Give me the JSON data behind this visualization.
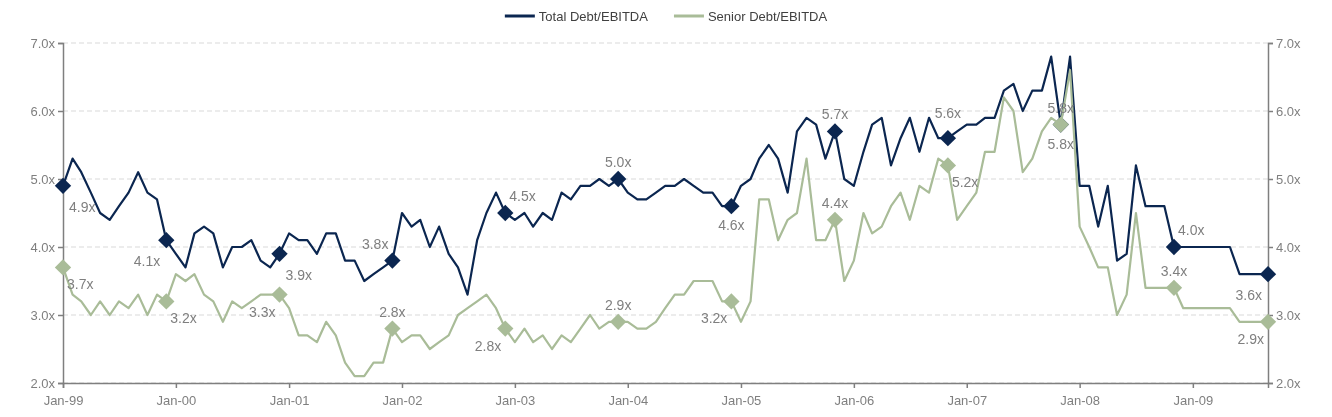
{
  "chart_data": {
    "type": "line",
    "x": [
      "1999-01",
      "1999-02",
      "1999-03",
      "1999-04",
      "1999-05",
      "1999-06",
      "1999-07",
      "1999-08",
      "1999-09",
      "1999-10",
      "1999-11",
      "1999-12",
      "2000-01",
      "2000-02",
      "2000-03",
      "2000-04",
      "2000-05",
      "2000-06",
      "2000-07",
      "2000-08",
      "2000-09",
      "2000-10",
      "2000-11",
      "2000-12",
      "2001-01",
      "2001-02",
      "2001-03",
      "2001-04",
      "2001-05",
      "2001-06",
      "2001-07",
      "2001-08",
      "2001-09",
      "2001-10",
      "2001-11",
      "2001-12",
      "2002-01",
      "2002-02",
      "2002-03",
      "2002-04",
      "2002-05",
      "2002-06",
      "2002-07",
      "2002-08",
      "2002-09",
      "2002-10",
      "2002-11",
      "2002-12",
      "2003-01",
      "2003-02",
      "2003-03",
      "2003-04",
      "2003-05",
      "2003-06",
      "2003-07",
      "2003-08",
      "2003-09",
      "2003-10",
      "2003-11",
      "2003-12",
      "2004-01",
      "2004-02",
      "2004-03",
      "2004-04",
      "2004-05",
      "2004-06",
      "2004-07",
      "2004-08",
      "2004-09",
      "2004-10",
      "2004-11",
      "2004-12",
      "2005-01",
      "2005-02",
      "2005-03",
      "2005-04",
      "2005-05",
      "2005-06",
      "2005-07",
      "2005-08",
      "2005-09",
      "2005-10",
      "2005-11",
      "2005-12",
      "2006-01",
      "2006-02",
      "2006-03",
      "2006-04",
      "2006-05",
      "2006-06",
      "2006-07",
      "2006-08",
      "2006-09",
      "2006-10",
      "2006-11",
      "2006-12",
      "2007-01",
      "2007-02",
      "2007-03",
      "2007-04",
      "2007-05",
      "2007-06",
      "2007-07",
      "2007-08",
      "2007-09",
      "2007-10",
      "2007-11",
      "2007-12",
      "2008-01",
      "2008-02",
      "2008-03",
      "2008-04",
      "2008-05",
      "2008-06",
      "2008-07",
      "2008-08",
      "2008-09",
      "2008-10",
      "2008-11",
      "2008-12",
      "2009-01",
      "2009-02",
      "2009-03",
      "2009-04",
      "2009-05",
      "2009-06",
      "2009-07",
      "2009-08",
      "2009-09"
    ],
    "series": [
      {
        "name": "Total Debt/EBITDA",
        "color": "#0b2650",
        "values": [
          4.9,
          5.3,
          5.1,
          4.8,
          4.5,
          4.4,
          4.6,
          4.8,
          5.1,
          4.8,
          4.7,
          4.1,
          3.9,
          3.7,
          4.2,
          4.3,
          4.2,
          3.7,
          4.0,
          4.0,
          4.1,
          3.8,
          3.7,
          3.9,
          4.2,
          4.1,
          4.1,
          3.9,
          4.2,
          4.2,
          3.8,
          3.8,
          3.5,
          3.6,
          3.7,
          3.8,
          4.5,
          4.3,
          4.4,
          4.0,
          4.3,
          3.9,
          3.7,
          3.3,
          4.1,
          4.5,
          4.8,
          4.5,
          4.4,
          4.5,
          4.3,
          4.5,
          4.4,
          4.8,
          4.7,
          4.9,
          4.9,
          5.0,
          4.9,
          5.0,
          4.8,
          4.7,
          4.7,
          4.8,
          4.9,
          4.9,
          5.0,
          4.9,
          4.8,
          4.8,
          4.6,
          4.6,
          4.9,
          5.0,
          5.3,
          5.5,
          5.3,
          4.8,
          5.7,
          5.9,
          5.8,
          5.3,
          5.7,
          5.0,
          4.9,
          5.4,
          5.8,
          5.9,
          5.2,
          5.6,
          5.9,
          5.4,
          5.9,
          5.6,
          5.6,
          5.7,
          5.8,
          5.8,
          5.9,
          5.9,
          6.3,
          6.4,
          6.0,
          6.3,
          6.3,
          6.8,
          5.8,
          6.8,
          4.9,
          4.9,
          4.3,
          4.9,
          3.8,
          3.9,
          5.2,
          4.6,
          4.6,
          4.6,
          4.0,
          4.0,
          4.0,
          4.0,
          4.0,
          4.0,
          4.0,
          3.6,
          3.6,
          3.6,
          3.6
        ]
      },
      {
        "type": "scatter",
        "marker": "diamond",
        "color": "#0b2650",
        "x": [
          "1999-01",
          "1999-12",
          "2000-12",
          "2001-12",
          "2002-12",
          "2003-12",
          "2004-12",
          "2005-11",
          "2006-11",
          "2007-11",
          "2008-11",
          "2009-09"
        ],
        "values": [
          4.9,
          4.1,
          3.9,
          3.8,
          4.5,
          5.0,
          4.6,
          5.7,
          5.6,
          5.8,
          4.0,
          3.6
        ],
        "value_labels": [
          "4.9x",
          "4.1x",
          "3.9x",
          "3.8x",
          "4.5x",
          "5.0x",
          "4.6x",
          "5.7x",
          "5.6x",
          "5.8x",
          "4.0x",
          "3.6x"
        ]
      },
      {
        "type": "scatter",
        "marker": "diamond",
        "color": "#a9bc98",
        "x": [
          "1999-01",
          "1999-12",
          "2000-12",
          "2001-12",
          "2002-12",
          "2003-12",
          "2004-12",
          "2005-11",
          "2006-11",
          "2007-11",
          "2008-11",
          "2009-09"
        ],
        "values": [
          3.7,
          3.2,
          3.3,
          2.8,
          2.8,
          2.9,
          3.2,
          4.4,
          5.2,
          5.8,
          3.4,
          2.9
        ],
        "value_labels": [
          "3.7x",
          "3.2x",
          "3.3x",
          "2.8x",
          "2.8x",
          "2.9x",
          "3.2x",
          "4.4x",
          "5.2x",
          "5.8x",
          "3.4x",
          "2.9x"
        ]
      },
      {
        "name": "Senior Debt/EBITDA",
        "color": "#a9bc98",
        "values": [
          3.7,
          3.3,
          3.2,
          3.0,
          3.2,
          3.0,
          3.2,
          3.1,
          3.3,
          3.0,
          3.3,
          3.2,
          3.6,
          3.5,
          3.6,
          3.3,
          3.2,
          2.9,
          3.2,
          3.1,
          3.2,
          3.3,
          3.3,
          3.3,
          3.1,
          2.7,
          2.7,
          2.6,
          2.9,
          2.7,
          2.3,
          2.1,
          2.1,
          2.3,
          2.3,
          2.8,
          2.6,
          2.7,
          2.7,
          2.5,
          2.6,
          2.7,
          3.0,
          3.1,
          3.2,
          3.3,
          3.1,
          2.8,
          2.6,
          2.8,
          2.6,
          2.7,
          2.5,
          2.7,
          2.6,
          2.8,
          3.0,
          2.8,
          2.9,
          2.9,
          2.9,
          2.8,
          2.8,
          2.9,
          3.1,
          3.3,
          3.3,
          3.5,
          3.5,
          3.5,
          3.2,
          3.2,
          2.9,
          3.2,
          4.7,
          4.7,
          4.1,
          4.4,
          4.5,
          5.3,
          4.1,
          4.1,
          4.4,
          3.5,
          3.8,
          4.5,
          4.2,
          4.3,
          4.6,
          4.8,
          4.4,
          4.9,
          4.8,
          5.3,
          5.2,
          4.4,
          4.6,
          4.8,
          5.4,
          5.4,
          6.2,
          6.0,
          5.1,
          5.3,
          5.7,
          5.9,
          5.8,
          6.6,
          4.3,
          4.0,
          3.7,
          3.7,
          3.0,
          3.3,
          4.5,
          3.4,
          3.4,
          3.4,
          3.4,
          3.1,
          3.1,
          3.1,
          3.1,
          3.1,
          3.1,
          2.9,
          2.9,
          2.9,
          2.9
        ]
      }
    ],
    "xlim": [
      "1999-01",
      "2009-09"
    ],
    "xticks": [
      {
        "value": "1999-01",
        "label": "Jan-99"
      },
      {
        "value": "2000-01",
        "label": "Jan-00"
      },
      {
        "value": "2001-01",
        "label": "Jan-01"
      },
      {
        "value": "2002-01",
        "label": "Jan-02"
      },
      {
        "value": "2003-01",
        "label": "Jan-03"
      },
      {
        "value": "2004-01",
        "label": "Jan-04"
      },
      {
        "value": "2005-01",
        "label": "Jan-05"
      },
      {
        "value": "2006-01",
        "label": "Jan-06"
      },
      {
        "value": "2007-01",
        "label": "Jan-07"
      },
      {
        "value": "2008-01",
        "label": "Jan-08"
      },
      {
        "value": "2009-01",
        "label": "Jan-09"
      }
    ],
    "ylim": [
      2,
      7
    ],
    "yticks": [
      {
        "value": 2,
        "label": "2.0x"
      },
      {
        "value": 3,
        "label": "3.0x"
      },
      {
        "value": 4,
        "label": "4.0x"
      },
      {
        "value": 5,
        "label": "5.0x"
      },
      {
        "value": 6,
        "label": "6.0x"
      },
      {
        "value": 7,
        "label": "7.0x"
      }
    ],
    "y2lim": [
      2,
      7
    ],
    "y2ticks": [
      {
        "value": 2,
        "label": "2.0x"
      },
      {
        "value": 3,
        "label": "3.0x"
      },
      {
        "value": 4,
        "label": "4.0x"
      },
      {
        "value": 5,
        "label": "5.0x"
      },
      {
        "value": 6,
        "label": "6.0x"
      },
      {
        "value": 7,
        "label": "7.0x"
      }
    ],
    "grid": "y",
    "legend": "top",
    "line_style": "solid"
  }
}
